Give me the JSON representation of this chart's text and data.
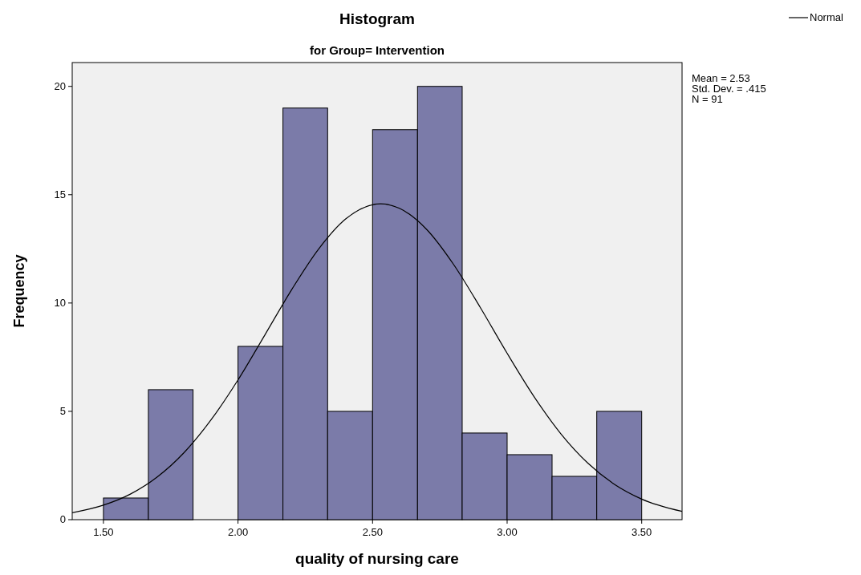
{
  "chart_data": {
    "type": "histogram",
    "title": "Histogram",
    "subtitle": "for Group= Intervention",
    "xlabel": "quality of nursing care",
    "ylabel": "Frequency",
    "bins": [
      1.5,
      1.667,
      1.833,
      2.0,
      2.167,
      2.333,
      2.5,
      2.667,
      2.833,
      3.0,
      3.167,
      3.333,
      3.5
    ],
    "values": [
      1,
      6,
      0,
      8,
      19,
      5,
      18,
      20,
      4,
      3,
      2,
      5
    ],
    "color": "#7b7ba9",
    "series": [
      {
        "name": "Normal",
        "type": "line",
        "color": "#000000",
        "x": [
          1.384,
          1.5,
          1.6,
          1.7,
          1.8,
          1.9,
          2.0,
          2.1,
          2.2,
          2.3,
          2.4,
          2.53,
          2.6,
          2.7,
          2.8,
          2.9,
          3.0,
          3.1,
          3.2,
          3.3,
          3.4,
          3.5,
          3.65
        ],
        "values": [
          0.32,
          0.67,
          1.18,
          1.97,
          3.1,
          4.61,
          6.45,
          8.53,
          10.63,
          12.5,
          13.88,
          14.58,
          14.37,
          13.41,
          11.8,
          9.8,
          7.68,
          5.68,
          3.96,
          2.61,
          1.62,
          0.95,
          0.38
        ]
      }
    ],
    "xlim": [
      1.384,
      3.65
    ],
    "ylim": [
      0,
      21.1
    ],
    "xticks": [
      {
        "value": 1.5,
        "label": "1.50"
      },
      {
        "value": 2.0,
        "label": "2.00"
      },
      {
        "value": 2.5,
        "label": "2.50"
      },
      {
        "value": 3.0,
        "label": "3.00"
      },
      {
        "value": 3.5,
        "label": "3.50"
      }
    ],
    "yticks": [
      0,
      5,
      10,
      15,
      20
    ],
    "legend": "top right",
    "annotations": [
      "Mean = 2.53",
      "Std. Dev. = .415",
      "N = 91"
    ]
  }
}
